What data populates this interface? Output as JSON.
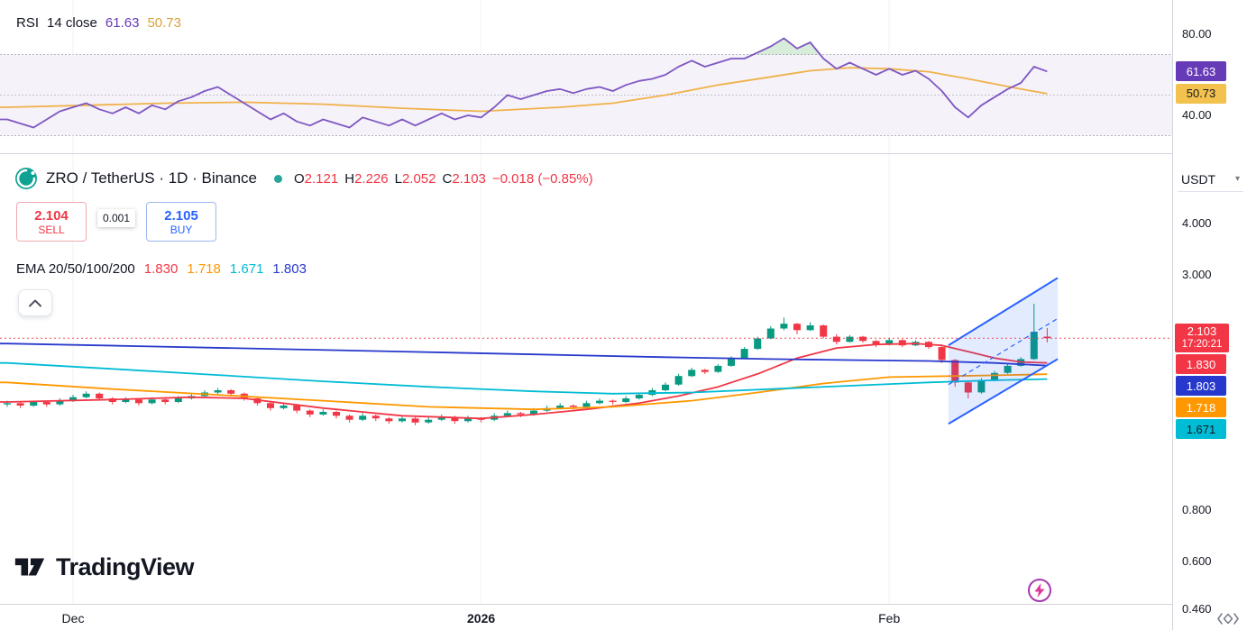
{
  "colors": {
    "up": "#089981",
    "down": "#F23645",
    "accent": "#2962FF",
    "rsi_line": "#7E57C2",
    "rsi_ma": "#F0B24A"
  },
  "rsi_pane": {
    "indicator_label": "RSI",
    "indicator_params": "14 close",
    "value_main": "61.63",
    "value_ma": "50.73"
  },
  "symbol_header": {
    "title": "ZRO / TetherUS · 1D · Binance",
    "ohlc": {
      "o_label": "O",
      "o": "2.121",
      "h_label": "H",
      "h": "2.226",
      "l_label": "L",
      "l": "2.052",
      "c_label": "C",
      "c": "2.103",
      "change": "−0.018 (−0.85%)"
    }
  },
  "order_panel": {
    "sell_price": "2.104",
    "sell_label": "SELL",
    "spread": "0.001",
    "buy_price": "2.105",
    "buy_label": "BUY"
  },
  "ema_legend": {
    "label": "EMA 20/50/100/200",
    "values": [
      {
        "text": "1.830",
        "color": "#F23645"
      },
      {
        "text": "1.718",
        "color": "#FF9800"
      },
      {
        "text": "1.671",
        "color": "#00BCD4"
      },
      {
        "text": "1.803",
        "color": "#2738CC"
      }
    ]
  },
  "price_axis": {
    "currency_label": "USDT",
    "rsi_ticks": [
      {
        "text": "80.00",
        "value": 80
      },
      {
        "text": "40.00",
        "value": 40
      }
    ],
    "ticks": [
      {
        "text": "4.000",
        "value": 4.0
      },
      {
        "text": "3.000",
        "value": 3.0
      },
      {
        "text": "0.800",
        "value": 0.8
      },
      {
        "text": "0.600",
        "value": 0.6
      },
      {
        "text": "0.460",
        "value": 0.46
      }
    ],
    "rsi_badges": [
      {
        "text": "61.63",
        "value": 61.63,
        "bg": "#673AB7",
        "fg": "#FFFFFF"
      },
      {
        "text": "50.73",
        "value": 50.73,
        "bg": "#F2C14E",
        "fg": "#131722"
      }
    ],
    "price_badges": [
      {
        "text": "1.830",
        "value": 1.83,
        "bg": "#F23645",
        "fg": "#FFFFFF"
      },
      {
        "text": "1.803",
        "value": 1.803,
        "bg": "#2738CC",
        "fg": "#FFFFFF"
      },
      {
        "text": "1.718",
        "value": 1.718,
        "bg": "#FF9800",
        "fg": "#FFFFFF"
      },
      {
        "text": "1.671",
        "value": 1.671,
        "bg": "#00BCD4",
        "fg": "#131722"
      }
    ],
    "last_badge": {
      "price": "2.103",
      "countdown": "17:20:21",
      "bg": "#F23645",
      "fg": "#FFFFFF"
    }
  },
  "time_axis": {
    "labels": [
      {
        "text": "Dec",
        "index": 5,
        "bold": false
      },
      {
        "text": "2026",
        "index": 36,
        "bold": true
      },
      {
        "text": "Feb",
        "index": 67,
        "bold": false
      }
    ]
  },
  "watermark": {
    "text": "TradingView"
  },
  "chart_data": [
    {
      "type": "line",
      "title": "RSI 14 close",
      "pane": "rsi",
      "ylim": [
        25,
        95
      ],
      "axis_ticks": [
        80,
        40
      ],
      "bands": {
        "upper": 70,
        "middle": 50,
        "lower": 30,
        "fill": "#7E57C2"
      },
      "last_values": {
        "rsi": 61.63,
        "ma": 50.73
      },
      "series": [
        {
          "name": "RSI",
          "color": "#7E57C2",
          "values": [
            38,
            36,
            34,
            38,
            42,
            44,
            46,
            43,
            41,
            44,
            41,
            45,
            43,
            47,
            49,
            52,
            54,
            50,
            46,
            42,
            38,
            41,
            37,
            35,
            38,
            36,
            34,
            39,
            37,
            35,
            38,
            35,
            38,
            41,
            38,
            40,
            39,
            44,
            50,
            48,
            50,
            52,
            53,
            51,
            53,
            54,
            52,
            55,
            57,
            58,
            60,
            64,
            67,
            64,
            66,
            68,
            68,
            71,
            74,
            78,
            73,
            76,
            68,
            63,
            66,
            63,
            60,
            63,
            60,
            62,
            58,
            52,
            44,
            39,
            45,
            49,
            53,
            56,
            64,
            61.63
          ]
        },
        {
          "name": "RSI-based MA",
          "color": "#F0B24A",
          "points": [
            [
              0,
              44
            ],
            [
              6,
              45
            ],
            [
              12,
              46
            ],
            [
              18,
              46.5
            ],
            [
              24,
              45.5
            ],
            [
              30,
              43.5
            ],
            [
              36,
              42
            ],
            [
              42,
              44
            ],
            [
              46,
              46
            ],
            [
              50,
              50
            ],
            [
              54,
              55
            ],
            [
              58,
              59
            ],
            [
              61,
              62
            ],
            [
              64,
              63.5
            ],
            [
              67,
              63
            ],
            [
              70,
              61.5
            ],
            [
              73,
              58
            ],
            [
              75,
              55.5
            ],
            [
              77,
              53
            ],
            [
              79,
              50.73
            ]
          ]
        }
      ]
    },
    {
      "type": "candlestick",
      "title": "ZRO / TetherUS · 1D · Binance",
      "pane": "price",
      "scale": "log",
      "up_color": "#089981",
      "down_color": "#F23645",
      "last_price": 2.103,
      "countdown": "17:20:21",
      "axis_ticks": [
        4.0,
        3.0,
        0.8,
        0.6,
        0.46
      ],
      "candles": [
        [
          1.45,
          1.48,
          1.43,
          1.46
        ],
        [
          1.46,
          1.47,
          1.42,
          1.44
        ],
        [
          1.44,
          1.48,
          1.43,
          1.47
        ],
        [
          1.47,
          1.48,
          1.43,
          1.45
        ],
        [
          1.45,
          1.5,
          1.44,
          1.48
        ],
        [
          1.48,
          1.53,
          1.47,
          1.51
        ],
        [
          1.51,
          1.56,
          1.5,
          1.54
        ],
        [
          1.54,
          1.55,
          1.48,
          1.5
        ],
        [
          1.5,
          1.51,
          1.45,
          1.47
        ],
        [
          1.47,
          1.51,
          1.46,
          1.49
        ],
        [
          1.49,
          1.5,
          1.44,
          1.46
        ],
        [
          1.46,
          1.51,
          1.45,
          1.49
        ],
        [
          1.49,
          1.5,
          1.45,
          1.47
        ],
        [
          1.47,
          1.52,
          1.46,
          1.5
        ],
        [
          1.5,
          1.54,
          1.49,
          1.52
        ],
        [
          1.52,
          1.57,
          1.51,
          1.55
        ],
        [
          1.55,
          1.59,
          1.53,
          1.57
        ],
        [
          1.57,
          1.58,
          1.52,
          1.54
        ],
        [
          1.54,
          1.55,
          1.48,
          1.5
        ],
        [
          1.5,
          1.51,
          1.44,
          1.46
        ],
        [
          1.46,
          1.47,
          1.4,
          1.42
        ],
        [
          1.42,
          1.46,
          1.41,
          1.44
        ],
        [
          1.44,
          1.45,
          1.38,
          1.4
        ],
        [
          1.4,
          1.41,
          1.35,
          1.37
        ],
        [
          1.37,
          1.41,
          1.36,
          1.39
        ],
        [
          1.39,
          1.4,
          1.34,
          1.36
        ],
        [
          1.36,
          1.37,
          1.31,
          1.33
        ],
        [
          1.33,
          1.38,
          1.32,
          1.36
        ],
        [
          1.36,
          1.37,
          1.32,
          1.34
        ],
        [
          1.34,
          1.35,
          1.3,
          1.32
        ],
        [
          1.32,
          1.36,
          1.31,
          1.34
        ],
        [
          1.34,
          1.35,
          1.29,
          1.31
        ],
        [
          1.31,
          1.35,
          1.3,
          1.33
        ],
        [
          1.33,
          1.37,
          1.32,
          1.35
        ],
        [
          1.35,
          1.36,
          1.3,
          1.32
        ],
        [
          1.32,
          1.36,
          1.31,
          1.34
        ],
        [
          1.34,
          1.35,
          1.31,
          1.33
        ],
        [
          1.33,
          1.38,
          1.32,
          1.36
        ],
        [
          1.36,
          1.4,
          1.35,
          1.38
        ],
        [
          1.38,
          1.39,
          1.35,
          1.37
        ],
        [
          1.37,
          1.42,
          1.36,
          1.4
        ],
        [
          1.4,
          1.44,
          1.39,
          1.42
        ],
        [
          1.42,
          1.46,
          1.41,
          1.44
        ],
        [
          1.44,
          1.45,
          1.41,
          1.43
        ],
        [
          1.43,
          1.48,
          1.42,
          1.46
        ],
        [
          1.46,
          1.5,
          1.45,
          1.48
        ],
        [
          1.48,
          1.49,
          1.45,
          1.47
        ],
        [
          1.47,
          1.52,
          1.46,
          1.5
        ],
        [
          1.5,
          1.55,
          1.49,
          1.53
        ],
        [
          1.53,
          1.59,
          1.52,
          1.57
        ],
        [
          1.57,
          1.64,
          1.56,
          1.62
        ],
        [
          1.62,
          1.72,
          1.61,
          1.7
        ],
        [
          1.7,
          1.78,
          1.69,
          1.76
        ],
        [
          1.76,
          1.77,
          1.72,
          1.74
        ],
        [
          1.74,
          1.82,
          1.73,
          1.8
        ],
        [
          1.8,
          1.9,
          1.79,
          1.88
        ],
        [
          1.88,
          2.0,
          1.87,
          1.98
        ],
        [
          1.98,
          2.12,
          1.97,
          2.1
        ],
        [
          2.1,
          2.25,
          2.09,
          2.22
        ],
        [
          2.22,
          2.36,
          2.2,
          2.28
        ],
        [
          2.28,
          2.29,
          2.15,
          2.2
        ],
        [
          2.2,
          2.3,
          2.19,
          2.26
        ],
        [
          2.26,
          2.27,
          2.1,
          2.12
        ],
        [
          2.12,
          2.15,
          2.03,
          2.06
        ],
        [
          2.06,
          2.14,
          2.05,
          2.12
        ],
        [
          2.12,
          2.13,
          2.05,
          2.07
        ],
        [
          2.07,
          2.08,
          2.0,
          2.03
        ],
        [
          2.03,
          2.1,
          2.02,
          2.08
        ],
        [
          2.08,
          2.09,
          2.0,
          2.02
        ],
        [
          2.02,
          2.08,
          2.01,
          2.06
        ],
        [
          2.06,
          2.07,
          1.98,
          2.0
        ],
        [
          2.0,
          2.01,
          1.83,
          1.86
        ],
        [
          1.86,
          1.87,
          1.6,
          1.64
        ],
        [
          1.64,
          1.65,
          1.5,
          1.55
        ],
        [
          1.55,
          1.68,
          1.54,
          1.66
        ],
        [
          1.66,
          1.75,
          1.65,
          1.73
        ],
        [
          1.73,
          1.82,
          1.72,
          1.8
        ],
        [
          1.8,
          1.89,
          1.79,
          1.87
        ],
        [
          1.87,
          2.55,
          1.86,
          2.18
        ],
        [
          2.121,
          2.226,
          2.052,
          2.103
        ]
      ],
      "emas": [
        {
          "id": "ema-20",
          "name": "EMA 20",
          "color": "#F23645",
          "last": 1.83,
          "points": [
            [
              0,
              1.47
            ],
            [
              8,
              1.49
            ],
            [
              14,
              1.51
            ],
            [
              18,
              1.5
            ],
            [
              24,
              1.42
            ],
            [
              30,
              1.36
            ],
            [
              36,
              1.34
            ],
            [
              40,
              1.37
            ],
            [
              44,
              1.41
            ],
            [
              48,
              1.46
            ],
            [
              51,
              1.52
            ],
            [
              54,
              1.6
            ],
            [
              57,
              1.72
            ],
            [
              60,
              1.88
            ],
            [
              63,
              1.99
            ],
            [
              66,
              2.03
            ],
            [
              69,
              2.04
            ],
            [
              71,
              2.02
            ],
            [
              73,
              1.95
            ],
            [
              75,
              1.88
            ],
            [
              77,
              1.84
            ],
            [
              79,
              1.83
            ]
          ]
        },
        {
          "id": "ema-50",
          "name": "EMA 50",
          "color": "#FF9800",
          "last": 1.718,
          "points": [
            [
              0,
              1.64
            ],
            [
              8,
              1.58
            ],
            [
              16,
              1.53
            ],
            [
              24,
              1.48
            ],
            [
              32,
              1.43
            ],
            [
              40,
              1.41
            ],
            [
              46,
              1.43
            ],
            [
              52,
              1.48
            ],
            [
              57,
              1.55
            ],
            [
              62,
              1.63
            ],
            [
              67,
              1.69
            ],
            [
              72,
              1.7
            ],
            [
              76,
              1.71
            ],
            [
              79,
              1.718
            ]
          ]
        },
        {
          "id": "ema-100",
          "name": "EMA 100",
          "color": "#00BCD4",
          "last": 1.671,
          "points": [
            [
              0,
              1.83
            ],
            [
              8,
              1.77
            ],
            [
              16,
              1.71
            ],
            [
              24,
              1.65
            ],
            [
              32,
              1.6
            ],
            [
              40,
              1.56
            ],
            [
              46,
              1.54
            ],
            [
              52,
              1.55
            ],
            [
              58,
              1.58
            ],
            [
              64,
              1.61
            ],
            [
              70,
              1.64
            ],
            [
              75,
              1.66
            ],
            [
              79,
              1.671
            ]
          ]
        },
        {
          "id": "ema-200",
          "name": "EMA 200",
          "color": "#2738CC",
          "last": 1.803,
          "points": [
            [
              0,
              2.04
            ],
            [
              10,
              2.01
            ],
            [
              20,
              1.98
            ],
            [
              30,
              1.95
            ],
            [
              40,
              1.92
            ],
            [
              50,
              1.89
            ],
            [
              58,
              1.87
            ],
            [
              64,
              1.86
            ],
            [
              70,
              1.85
            ],
            [
              75,
              1.83
            ],
            [
              79,
              1.803
            ]
          ]
        }
      ],
      "channel": {
        "color": "#2962FF",
        "x1": 71.5,
        "x2": 79.8,
        "top": [
          2.02,
          2.95
        ],
        "bottom": [
          1.3,
          1.87
        ]
      },
      "x_labels": [
        {
          "index": 5,
          "text": "Dec"
        },
        {
          "index": 36,
          "text": "2026"
        },
        {
          "index": 67,
          "text": "Feb"
        }
      ]
    }
  ]
}
